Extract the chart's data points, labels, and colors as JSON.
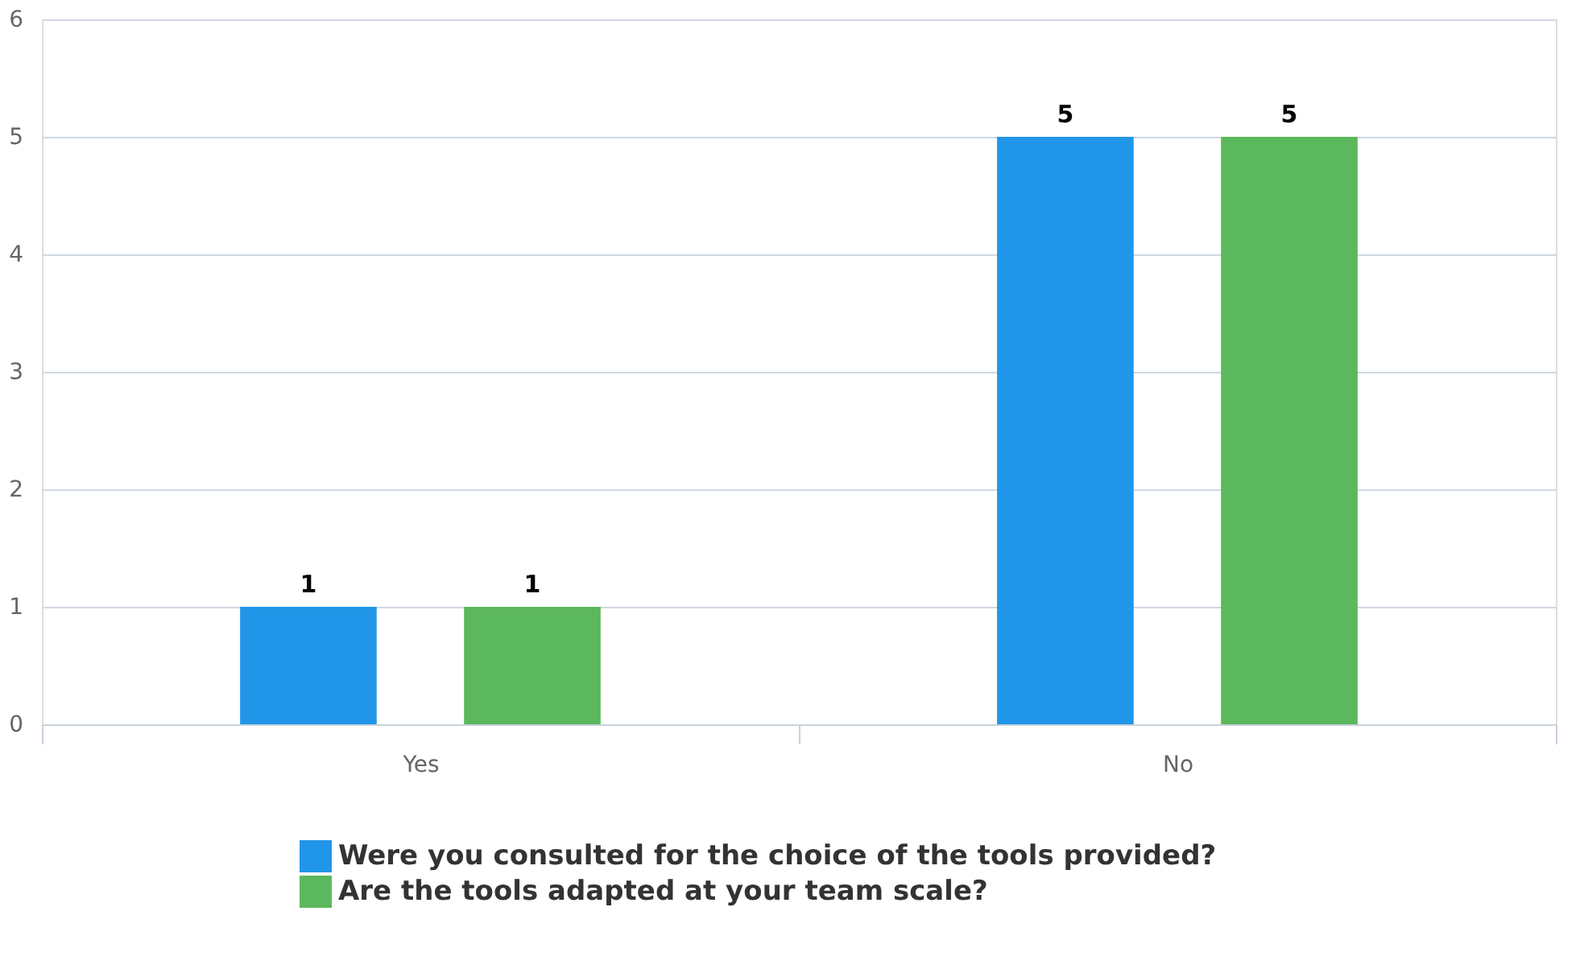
{
  "chart_data": {
    "type": "bar",
    "categories": [
      "Yes",
      "No"
    ],
    "series": [
      {
        "name": "Were you consulted for the choice of the tools provided?",
        "color": "#2196e8",
        "values": [
          1,
          5
        ]
      },
      {
        "name": "Are the tools adapted at your team scale?",
        "color": "#5cb85c",
        "values": [
          1,
          5
        ]
      }
    ],
    "ylim": [
      0,
      6
    ],
    "yticks": [
      0,
      1,
      2,
      3,
      4,
      5,
      6
    ],
    "grid": "y",
    "legend": "bottom",
    "data_labels": true
  }
}
